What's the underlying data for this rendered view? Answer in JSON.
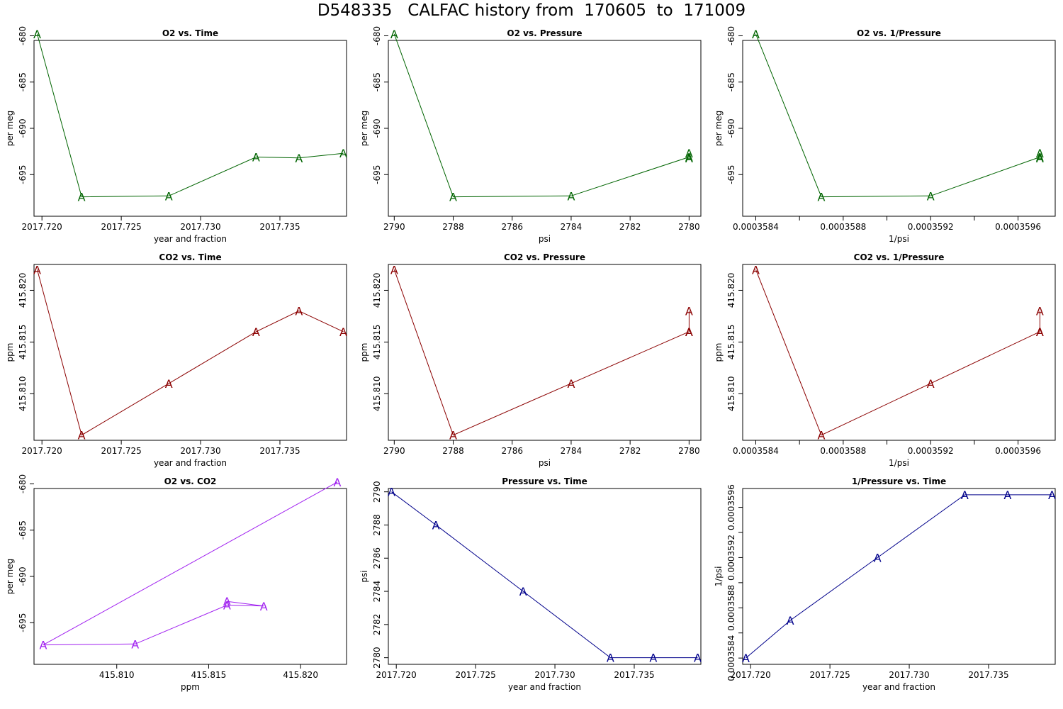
{
  "page_title": "D548335   CALFAC history from  170605  to  171009",
  "chart_data": [
    {
      "type": "line",
      "title": "O2 vs. Time",
      "xlabel": "year and fraction",
      "ylabel": "per meg",
      "color": "#006400",
      "marker": "A",
      "xlim": [
        2017.7195,
        2017.7392
      ],
      "ylim": [
        -699.5,
        -680.5
      ],
      "reverse_x": false,
      "xticks": [
        2017.72,
        2017.725,
        2017.73,
        2017.735
      ],
      "xtick_labels": [
        "2017.720",
        "2017.725",
        "2017.730",
        "2017.735"
      ],
      "yticks": [
        -680,
        -685,
        -690,
        -695
      ],
      "ytick_labels": [
        "-680",
        "-685",
        "-690",
        "-695"
      ],
      "x": [
        2017.7197,
        2017.7225,
        2017.728,
        2017.7335,
        2017.7362,
        2017.739
      ],
      "y": [
        -679.8,
        -697.4,
        -697.3,
        -693.1,
        -693.2,
        -692.7
      ]
    },
    {
      "type": "line",
      "title": "O2 vs. Pressure",
      "xlabel": "psi",
      "ylabel": "per meg",
      "color": "#006400",
      "marker": "A",
      "xlim": [
        2790.2,
        2779.6
      ],
      "ylim": [
        -699.5,
        -680.5
      ],
      "reverse_x": true,
      "xticks": [
        2790,
        2788,
        2786,
        2784,
        2782,
        2780
      ],
      "xtick_labels": [
        "2790",
        "2788",
        "2786",
        "2784",
        "2782",
        "2780"
      ],
      "yticks": [
        -680,
        -685,
        -690,
        -695
      ],
      "ytick_labels": [
        "-680",
        "-685",
        "-690",
        "-695"
      ],
      "x": [
        2790,
        2788,
        2784,
        2780,
        2780,
        2780
      ],
      "y": [
        -679.8,
        -697.4,
        -697.3,
        -693.1,
        -693.2,
        -692.7
      ]
    },
    {
      "type": "line",
      "title": "O2 vs. 1/Pressure",
      "xlabel": "1/psi",
      "ylabel": "per meg",
      "color": "#006400",
      "marker": "A",
      "xlim": [
        0.00035834,
        0.00035977
      ],
      "ylim": [
        -699.5,
        -680.5
      ],
      "reverse_x": false,
      "xticks": [
        0.0003584,
        0.0003586,
        0.0003588,
        0.000359,
        0.0003592,
        0.0003594,
        0.0003596
      ],
      "xtick_labels": [
        "0.0003584",
        "",
        "0.0003588",
        "",
        "0.0003592",
        "",
        "0.0003596"
      ],
      "yticks": [
        -680,
        -685,
        -690,
        -695
      ],
      "ytick_labels": [
        "-680",
        "-685",
        "-690",
        "-695"
      ],
      "x": [
        0.0003584,
        0.0003587,
        0.0003592,
        0.0003597,
        0.0003597,
        0.0003597
      ],
      "y": [
        -679.8,
        -697.4,
        -697.3,
        -693.1,
        -693.2,
        -692.7
      ]
    },
    {
      "type": "line",
      "title": "CO2 vs. Time",
      "xlabel": "year and fraction",
      "ylabel": "ppm",
      "color": "#8b0000",
      "marker": "A",
      "xlim": [
        2017.7195,
        2017.7392
      ],
      "ylim": [
        415.8055,
        415.8225
      ],
      "reverse_x": false,
      "xticks": [
        2017.72,
        2017.725,
        2017.73,
        2017.735
      ],
      "xtick_labels": [
        "2017.720",
        "2017.725",
        "2017.730",
        "2017.735"
      ],
      "yticks": [
        415.81,
        415.815,
        415.82
      ],
      "ytick_labels": [
        "415.810",
        "415.815",
        "415.820"
      ],
      "x": [
        2017.7197,
        2017.7225,
        2017.728,
        2017.7335,
        2017.7362,
        2017.739
      ],
      "y": [
        415.822,
        415.806,
        415.811,
        415.816,
        415.818,
        415.816
      ]
    },
    {
      "type": "line",
      "title": "CO2 vs. Pressure",
      "xlabel": "psi",
      "ylabel": "ppm",
      "color": "#8b0000",
      "marker": "A",
      "xlim": [
        2790.2,
        2779.6
      ],
      "ylim": [
        415.8055,
        415.8225
      ],
      "reverse_x": true,
      "xticks": [
        2790,
        2788,
        2786,
        2784,
        2782,
        2780
      ],
      "xtick_labels": [
        "2790",
        "2788",
        "2786",
        "2784",
        "2782",
        "2780"
      ],
      "yticks": [
        415.81,
        415.815,
        415.82
      ],
      "ytick_labels": [
        "415.810",
        "415.815",
        "415.820"
      ],
      "x": [
        2790,
        2788,
        2784,
        2780,
        2780,
        2780
      ],
      "y": [
        415.822,
        415.806,
        415.811,
        415.816,
        415.818,
        415.816
      ]
    },
    {
      "type": "line",
      "title": "CO2 vs. 1/Pressure",
      "xlabel": "1/psi",
      "ylabel": "ppm",
      "color": "#8b0000",
      "marker": "A",
      "xlim": [
        0.00035834,
        0.00035977
      ],
      "ylim": [
        415.8055,
        415.8225
      ],
      "reverse_x": false,
      "xticks": [
        0.0003584,
        0.0003586,
        0.0003588,
        0.000359,
        0.0003592,
        0.0003594,
        0.0003596
      ],
      "xtick_labels": [
        "0.0003584",
        "",
        "0.0003588",
        "",
        "0.0003592",
        "",
        "0.0003596"
      ],
      "yticks": [
        415.81,
        415.815,
        415.82
      ],
      "ytick_labels": [
        "415.810",
        "415.815",
        "415.820"
      ],
      "x": [
        0.0003584,
        0.0003587,
        0.0003592,
        0.0003597,
        0.0003597,
        0.0003597
      ],
      "y": [
        415.822,
        415.806,
        415.811,
        415.816,
        415.818,
        415.816
      ]
    },
    {
      "type": "line",
      "title": "O2 vs. CO2",
      "xlabel": "ppm",
      "ylabel": "per meg",
      "color": "#a020f0",
      "marker": "A",
      "xlim": [
        415.8055,
        415.8225
      ],
      "ylim": [
        -699.5,
        -680.5
      ],
      "reverse_x": false,
      "xticks": [
        415.81,
        415.815,
        415.82
      ],
      "xtick_labels": [
        "415.810",
        "415.815",
        "415.820"
      ],
      "yticks": [
        -680,
        -685,
        -690,
        -695
      ],
      "ytick_labels": [
        "-680",
        "-685",
        "-690",
        "-695"
      ],
      "x": [
        415.822,
        415.806,
        415.811,
        415.816,
        415.818,
        415.816
      ],
      "y": [
        -679.8,
        -697.4,
        -697.3,
        -693.1,
        -693.2,
        -692.7
      ]
    },
    {
      "type": "line",
      "title": "Pressure vs. Time",
      "xlabel": "year and fraction",
      "ylabel": "psi",
      "color": "#00008b",
      "marker": "A",
      "xlim": [
        2017.7195,
        2017.7392
      ],
      "ylim": [
        2779.6,
        2790.2
      ],
      "reverse_x": false,
      "xticks": [
        2017.72,
        2017.725,
        2017.73,
        2017.735
      ],
      "xtick_labels": [
        "2017.720",
        "2017.725",
        "2017.730",
        "2017.735"
      ],
      "yticks": [
        2780,
        2782,
        2784,
        2786,
        2788,
        2790
      ],
      "ytick_labels": [
        "2780",
        "2782",
        "2784",
        "2786",
        "2788",
        "2790"
      ],
      "x": [
        2017.7197,
        2017.7225,
        2017.728,
        2017.7335,
        2017.7362,
        2017.739
      ],
      "y": [
        2790,
        2788,
        2784,
        2780,
        2780,
        2780
      ]
    },
    {
      "type": "line",
      "title": "1/Pressure vs. Time",
      "xlabel": "year and fraction",
      "ylabel": "1/psi",
      "color": "#00008b",
      "marker": "A",
      "xlim": [
        2017.7195,
        2017.7392
      ],
      "ylim": [
        0.00035835,
        0.00035975
      ],
      "reverse_x": false,
      "xticks": [
        2017.72,
        2017.725,
        2017.73,
        2017.735
      ],
      "xtick_labels": [
        "2017.720",
        "2017.725",
        "2017.730",
        "2017.735"
      ],
      "yticks": [
        0.0003584,
        0.0003586,
        0.0003588,
        0.000359,
        0.0003592,
        0.0003594,
        0.0003596
      ],
      "ytick_labels": [
        "0.0003584",
        "",
        "0.0003588",
        "",
        "0.0003592",
        "",
        "0.0003596"
      ],
      "x": [
        2017.7197,
        2017.7225,
        2017.728,
        2017.7335,
        2017.7362,
        2017.739
      ],
      "y": [
        0.0003584,
        0.0003587,
        0.0003592,
        0.0003597,
        0.0003597,
        0.0003597
      ]
    }
  ]
}
